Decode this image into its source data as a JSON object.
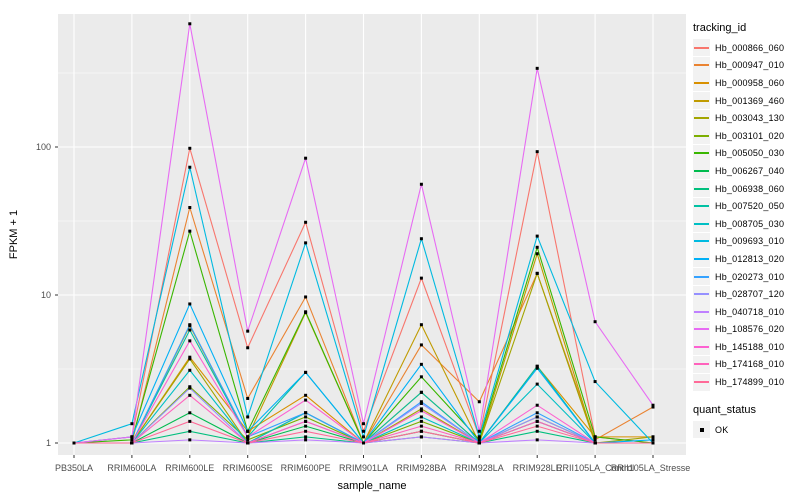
{
  "axes": {
    "x_title": "sample_name",
    "y_title": "FPKM + 1"
  },
  "chart_data": {
    "type": "line",
    "y_scale": "log10",
    "y_ticks": [
      1,
      10,
      100
    ],
    "y_tick_labels": [
      "1",
      "10",
      "100"
    ],
    "ylim": [
      1,
      790
    ],
    "grid": true,
    "panel_bg": "#EBEBEB",
    "grid_color": "#FFFFFF",
    "tick_color": "#333333",
    "tick_label_color": "#4D4D4D",
    "point_color": "#000000",
    "point_marker": "square",
    "legend_position": "right",
    "categories": [
      "PB350LA",
      "RRIM600LA",
      "RRIM600LE",
      "RRIM600SE",
      "RRIM600PE",
      "RRIM901LA",
      "RRIM928BA",
      "RRIM928LA",
      "RRIM928LE",
      "RRII105LA_Control",
      "RRII105LA_Stressed"
    ],
    "series": [
      {
        "name": "Hb_000866_060",
        "color": "#F8766D",
        "values": [
          1.0,
          1.1,
          98,
          4.4,
          31,
          1.2,
          13,
          1.1,
          93,
          1.1,
          1.0
        ]
      },
      {
        "name": "Hb_000947_010",
        "color": "#EA8331",
        "values": [
          1.0,
          1.0,
          39,
          2.0,
          9.7,
          1.0,
          4.6,
          1.9,
          14,
          1.05,
          1.75
        ]
      },
      {
        "name": "Hb_000958_060",
        "color": "#D89000",
        "values": [
          1.0,
          1.0,
          3.8,
          1.2,
          2.1,
          1.0,
          2.2,
          1.0,
          3.3,
          1.1,
          1.1
        ]
      },
      {
        "name": "Hb_001369_460",
        "color": "#C09B00",
        "values": [
          1.0,
          1.0,
          6.2,
          1.1,
          7.6,
          1.0,
          6.3,
          1.0,
          19,
          1.0,
          1.0
        ]
      },
      {
        "name": "Hb_003043_130",
        "color": "#A3A500",
        "values": [
          1.0,
          1.0,
          3.7,
          1.0,
          1.6,
          1.0,
          1.7,
          1.0,
          14,
          1.0,
          1.1
        ]
      },
      {
        "name": "Hb_003101_020",
        "color": "#7CAE00",
        "values": [
          1.0,
          1.0,
          2.4,
          1.05,
          1.5,
          1.0,
          1.4,
          1.0,
          1.5,
          1.0,
          1.0
        ]
      },
      {
        "name": "Hb_005050_030",
        "color": "#39B600",
        "values": [
          1.0,
          1.05,
          27,
          1.2,
          7.7,
          1.0,
          2.8,
          1.05,
          21,
          1.1,
          1.0
        ]
      },
      {
        "name": "Hb_006267_040",
        "color": "#00BB4E",
        "values": [
          1.0,
          1.0,
          1.6,
          1.0,
          1.3,
          1.0,
          1.2,
          1.0,
          1.4,
          1.0,
          1.0
        ]
      },
      {
        "name": "Hb_006938_060",
        "color": "#00BF7D",
        "values": [
          1.0,
          1.0,
          1.2,
          1.0,
          1.1,
          1.0,
          1.1,
          1.0,
          1.2,
          1.0,
          1.0
        ]
      },
      {
        "name": "Hb_007520_050",
        "color": "#00C1A3",
        "values": [
          1.0,
          1.0,
          5.8,
          1.1,
          3.0,
          1.0,
          2.2,
          1.0,
          3.3,
          1.0,
          1.0
        ]
      },
      {
        "name": "Hb_008705_030",
        "color": "#00BFC4",
        "values": [
          1.0,
          1.0,
          3.1,
          1.0,
          1.6,
          1.0,
          1.5,
          1.0,
          2.5,
          1.0,
          1.0
        ]
      },
      {
        "name": "Hb_009693_010",
        "color": "#00BAE0",
        "values": [
          1.0,
          1.35,
          73,
          1.5,
          22.5,
          1.1,
          24,
          1.1,
          25,
          2.6,
          1.0
        ]
      },
      {
        "name": "Hb_012813_020",
        "color": "#00B0F6",
        "values": [
          1.0,
          1.1,
          8.7,
          1.2,
          3.0,
          1.0,
          3.4,
          1.0,
          3.2,
          1.0,
          1.05
        ]
      },
      {
        "name": "Hb_020273_010",
        "color": "#35A2FF",
        "values": [
          1.0,
          1.0,
          6.3,
          1.1,
          1.6,
          1.0,
          1.9,
          1.0,
          1.6,
          1.0,
          1.0
        ]
      },
      {
        "name": "Hb_028707_120",
        "color": "#9590FF",
        "values": [
          1.0,
          1.0,
          2.35,
          1.0,
          1.4,
          1.0,
          1.85,
          1.0,
          1.5,
          1.0,
          1.0
        ]
      },
      {
        "name": "Hb_040718_010",
        "color": "#BF80FF",
        "values": [
          1.0,
          1.0,
          1.05,
          1.0,
          1.05,
          1.0,
          1.1,
          1.0,
          1.05,
          1.0,
          1.0
        ]
      },
      {
        "name": "Hb_108576_020",
        "color": "#E76BF3",
        "values": [
          1.0,
          1.1,
          680,
          5.7,
          84,
          1.35,
          56,
          1.2,
          340,
          6.6,
          1.8
        ]
      },
      {
        "name": "Hb_145188_010",
        "color": "#FD61D1",
        "values": [
          1.0,
          1.0,
          4.9,
          1.1,
          1.95,
          1.0,
          1.65,
          1.0,
          1.8,
          1.0,
          1.0
        ]
      },
      {
        "name": "Hb_174168_010",
        "color": "#FF62BC",
        "values": [
          1.0,
          1.0,
          2.1,
          1.0,
          1.4,
          1.0,
          1.3,
          1.0,
          1.4,
          1.0,
          1.0
        ]
      },
      {
        "name": "Hb_174899_010",
        "color": "#FF6A98",
        "values": [
          1.0,
          1.0,
          1.4,
          1.0,
          1.2,
          1.0,
          1.2,
          1.0,
          1.3,
          1.0,
          1.0
        ]
      }
    ],
    "legend": {
      "color_title": "tracking_id",
      "shape_title": "quant_status",
      "shape_items": [
        {
          "label": "OK",
          "marker": "black-square"
        }
      ]
    }
  }
}
